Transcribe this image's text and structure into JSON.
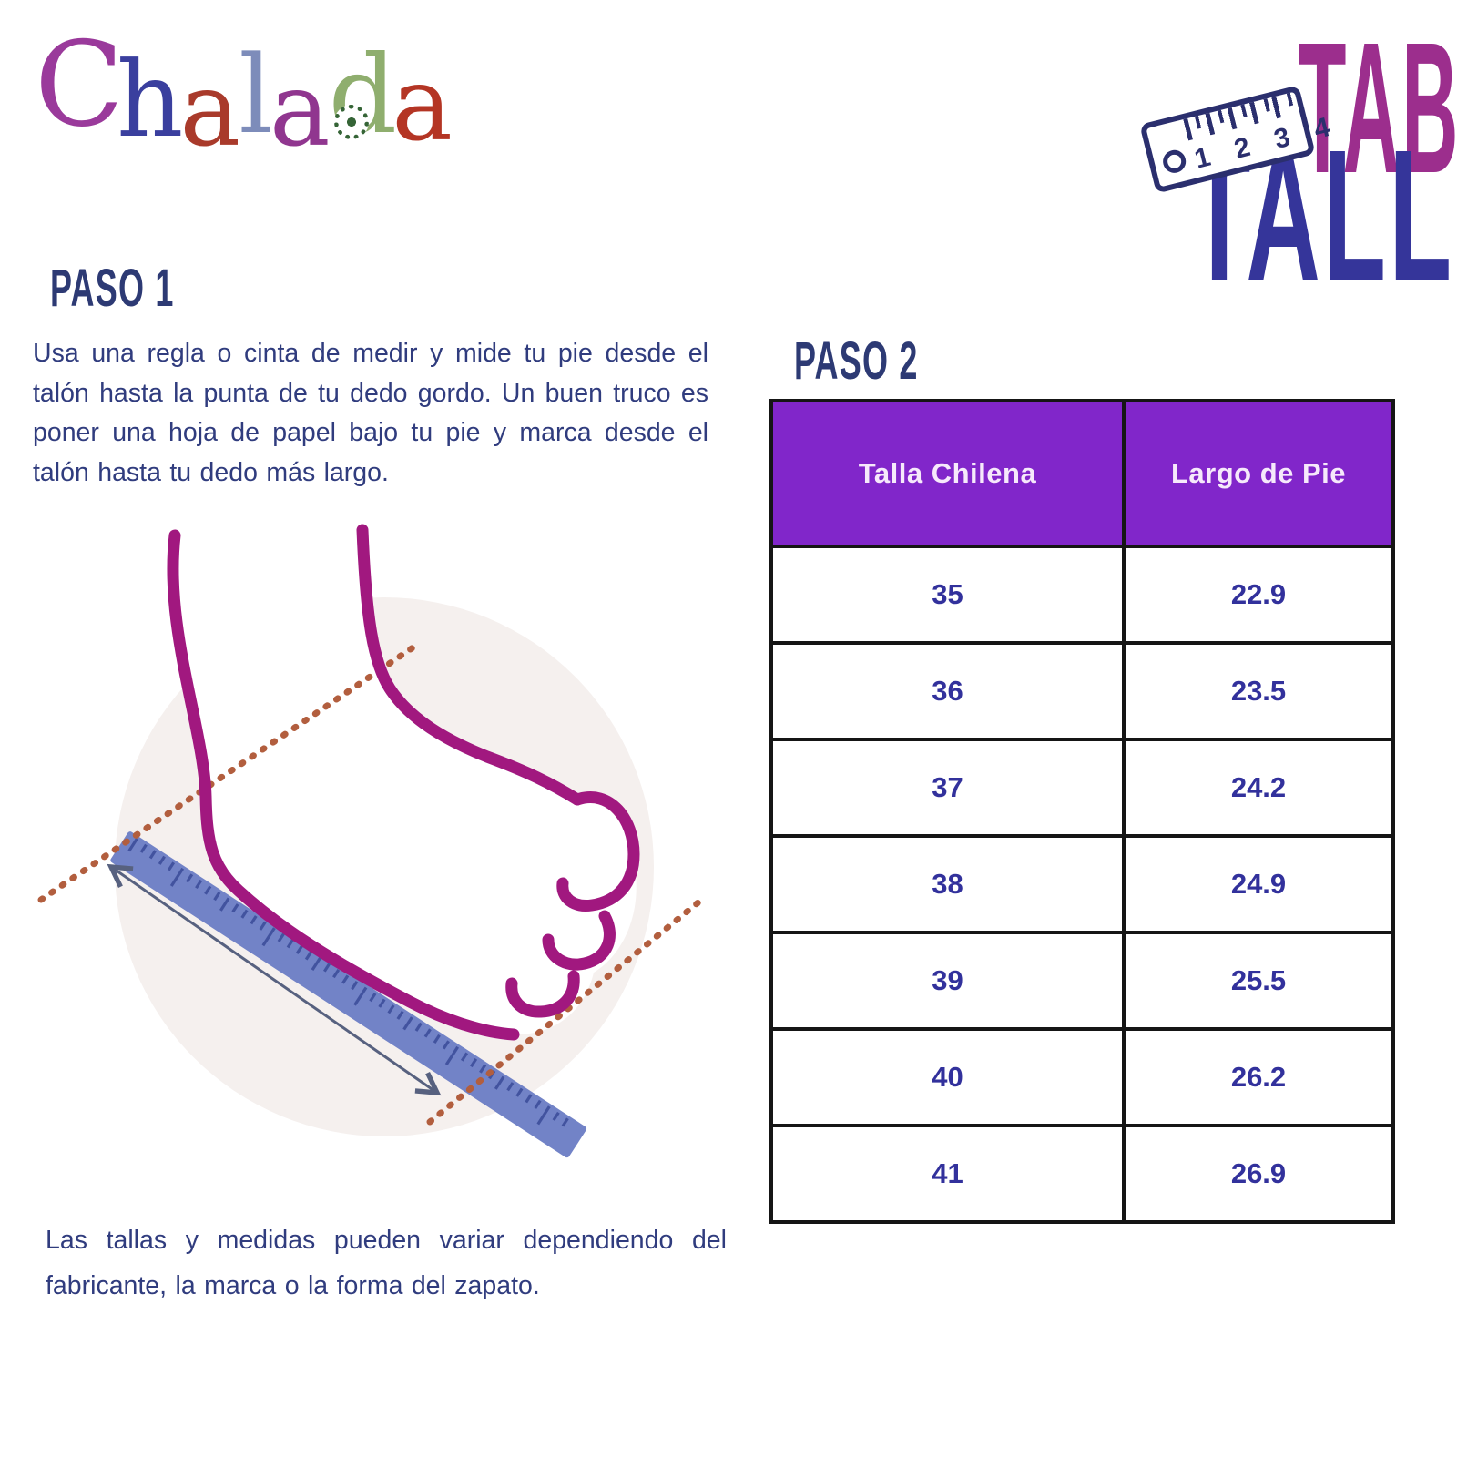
{
  "logo": {
    "name": "Chalada",
    "letters": [
      {
        "char": "C",
        "color": "#9a3a9b"
      },
      {
        "char": "h",
        "color": "#3a3f9e"
      },
      {
        "char": "a",
        "color": "#a93a2b"
      },
      {
        "char": "l",
        "color": "#7d8cba"
      },
      {
        "char": "a",
        "color": "#90368f"
      },
      {
        "char": "d",
        "color": "#8fae6e"
      },
      {
        "char": "a",
        "color": "#b43524"
      }
    ]
  },
  "title": {
    "line1": "TABLA DE",
    "line2": "TALLAS",
    "line1_color": "#9c2e8d",
    "line2_color": "#35359a",
    "ruler_badge_numbers": "1 2 3 4"
  },
  "step1": {
    "heading": "PASO 1",
    "body": "Usa una regla o cinta de medir y mide tu pie desde el talón hasta la punta de tu dedo gordo. Un buen truco es poner una hoja de papel bajo tu pie y marca desde el talón hasta tu dedo más largo."
  },
  "step2": {
    "heading": "PASO 2"
  },
  "size_table": {
    "headers": [
      "Talla Chilena",
      "Largo de Pie"
    ],
    "header_bg": "#8126ca",
    "header_text_color": "#f6e9fb",
    "cell_text_color": "#32319c",
    "rows": [
      {
        "talla": "35",
        "largo": "22.9"
      },
      {
        "talla": "36",
        "largo": "23.5"
      },
      {
        "talla": "37",
        "largo": "24.2"
      },
      {
        "talla": "38",
        "largo": "24.9"
      },
      {
        "talla": "39",
        "largo": "25.5"
      },
      {
        "talla": "40",
        "largo": "26.2"
      },
      {
        "talla": "41",
        "largo": "26.9"
      }
    ]
  },
  "footnote": "Las tallas y medidas pueden variar dependiendo del fabricante, la marca o la forma del zapato.",
  "illustration": {
    "circle_color": "#f5f0ee",
    "foot_outline_color": "#a1187f",
    "ruler_color": "#7283c7",
    "ruler_tick_color": "#42539f",
    "arrow_color": "#57617f",
    "dotted_guide_color": "#b25e3e"
  }
}
